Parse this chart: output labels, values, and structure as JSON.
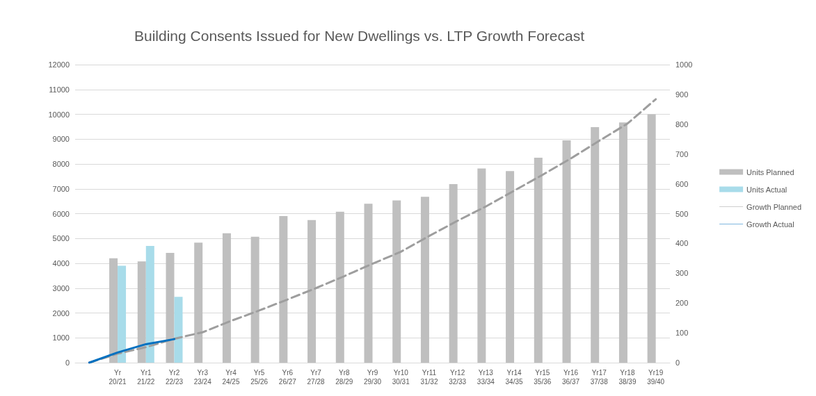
{
  "chart_data": {
    "type": "bar",
    "title": "Building Consents Issued for New Dwellings vs. LTP Growth Forecast",
    "categories": [
      null,
      "Yr 20/21",
      "Yr1 21/22",
      "Yr2 22/23",
      "Yr3 23/24",
      "Yr4 24/25",
      "Yr5 25/26",
      "Yr6 26/27",
      "Yr7 27/28",
      "Yr8 28/29",
      "Yr9 29/30",
      "Yr10 30/31",
      "Yr11 31/32",
      "Yr12 32/33",
      "Yr13 33/34",
      "Yr14 34/35",
      "Yr15 35/36",
      "Yr16 36/37",
      "Yr17 37/38",
      "Yr18 38/39",
      "Yr19 39/40"
    ],
    "series": [
      {
        "name": "Units Planned",
        "color": "#bfbfbf",
        "values": [
          null,
          4200,
          4080,
          4420,
          4830,
          5210,
          5070,
          5900,
          5740,
          6080,
          6400,
          6530,
          6680,
          7190,
          7820,
          7710,
          8250,
          8950,
          9480,
          9670,
          10000
        ]
      },
      {
        "name": "Units Actual",
        "color": "#a8dcea",
        "values": [
          null,
          3900,
          4700,
          2650,
          null,
          null,
          null,
          null,
          null,
          null,
          null,
          null,
          null,
          null,
          null,
          null,
          null,
          null,
          null,
          null,
          null
        ]
      },
      {
        "name": "Growth Planned",
        "type": "line",
        "axis": "y2",
        "line_style": "dashed",
        "color": "#9e9e9e",
        "values": [
          0,
          30,
          52,
          80,
          102,
          140,
          175,
          212,
          250,
          290,
          332,
          372,
          425,
          476,
          524,
          577,
          630,
          685,
          744,
          802,
          884
        ]
      },
      {
        "name": "Growth Actual",
        "type": "line",
        "axis": "y2",
        "line_style": "solid",
        "color": "#0070c0",
        "values": [
          0,
          34,
          62,
          79,
          null,
          null,
          null,
          null,
          null,
          null,
          null,
          null,
          null,
          null,
          null,
          null,
          null,
          null,
          null,
          null,
          null
        ]
      }
    ],
    "ylim": [
      0,
      12000
    ],
    "yticks": [
      0,
      1000,
      2000,
      3000,
      4000,
      5000,
      6000,
      7000,
      8000,
      9000,
      10000,
      11000,
      12000
    ],
    "y2lim": [
      0,
      1000
    ],
    "y2ticks": [
      0,
      100,
      200,
      300,
      400,
      500,
      600,
      700,
      800,
      900,
      1000
    ],
    "grid": "y",
    "legend": "right",
    "marker": "none"
  }
}
